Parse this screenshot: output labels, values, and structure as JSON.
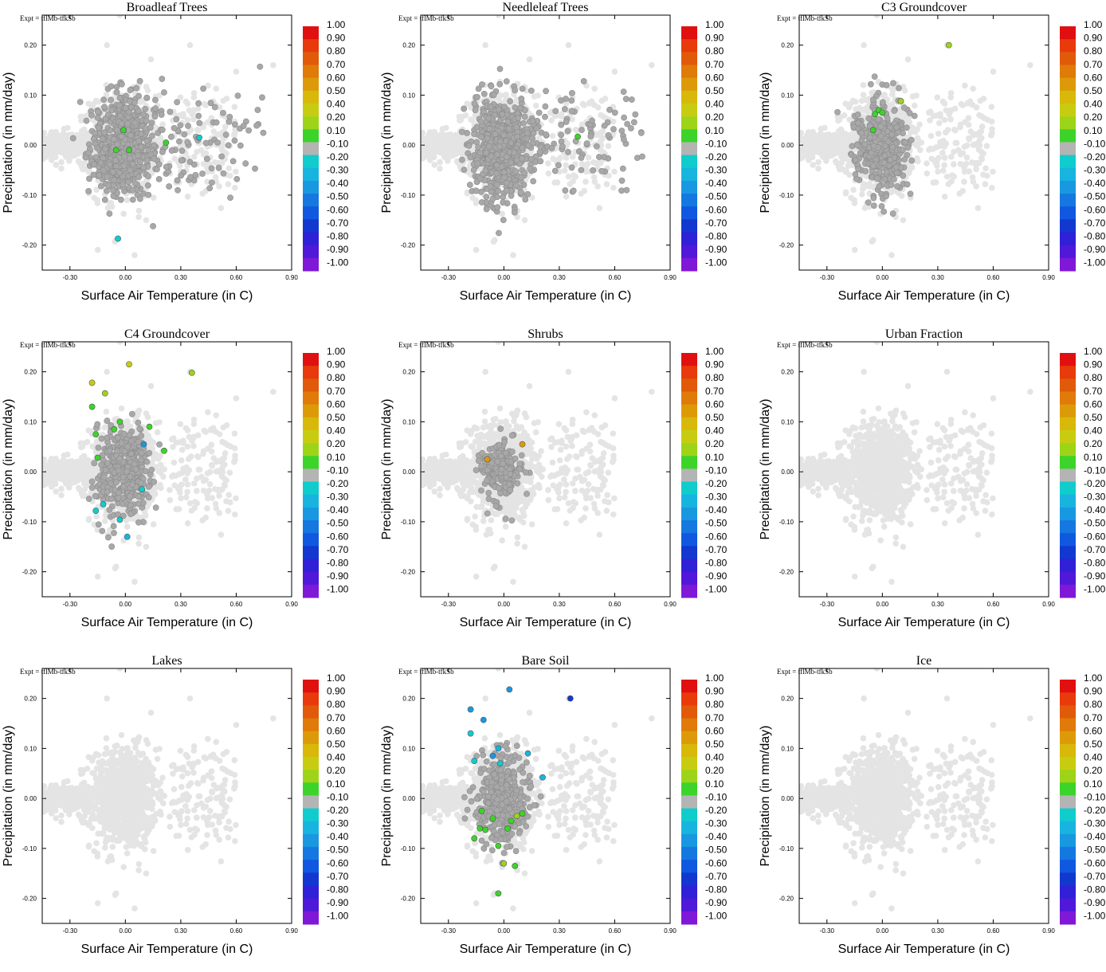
{
  "figure": {
    "expt_label": "Expt = tflMb-tfkSb",
    "xlabel": "Surface Air Temperature (in C)",
    "ylabel": "Precipitation (in mm/day)",
    "xlim": [
      -0.45,
      0.9
    ],
    "ylim": [
      -0.25,
      0.26
    ],
    "x_ticks": [
      "-0.30",
      "0.00",
      "0.30",
      "0.60",
      "0.90"
    ],
    "x_tick_values": [
      -0.3,
      0.0,
      0.3,
      0.6,
      0.9
    ],
    "y_ticks": [
      "0.20",
      "0.10",
      "0.00",
      "-0.10",
      "-0.20"
    ],
    "y_tick_values": [
      0.2,
      0.1,
      0.0,
      -0.1,
      -0.2
    ],
    "colorbar": {
      "labels": [
        "1.00",
        "0.90",
        "0.80",
        "0.70",
        "0.60",
        "0.50",
        "0.40",
        "0.20",
        "0.10",
        "-0.10",
        "-0.20",
        "-0.30",
        "-0.40",
        "-0.50",
        "-0.60",
        "-0.70",
        "-0.80",
        "-0.90",
        "-1.00"
      ],
      "colors": [
        "#e01010",
        "#e83a0a",
        "#e05a0a",
        "#e07a08",
        "#dd9a08",
        "#d8b808",
        "#c8cc10",
        "#9ed418",
        "#3cd42a",
        "#b4b4b4",
        "#10cccc",
        "#18b4e0",
        "#1898e0",
        "#1478e0",
        "#1058e0",
        "#1238d0",
        "#3020d8",
        "#5018d8",
        "#8018d8"
      ]
    }
  },
  "chart_data": [
    {
      "type": "scatter",
      "title": "Broadleaf Trees",
      "background_spread": "wide",
      "dark_spread": "large",
      "highlights": [
        {
          "x": -0.01,
          "y": 0.03,
          "c": "#3cd42a"
        },
        {
          "x": -0.05,
          "y": -0.01,
          "c": "#3cd42a"
        },
        {
          "x": 0.02,
          "y": -0.01,
          "c": "#3cd42a"
        },
        {
          "x": 0.22,
          "y": 0.005,
          "c": "#3cd42a"
        },
        {
          "x": 0.4,
          "y": 0.015,
          "c": "#10cccc"
        },
        {
          "x": -0.04,
          "y": -0.187,
          "c": "#10cccc"
        }
      ]
    },
    {
      "type": "scatter",
      "title": "Needleleaf Trees",
      "background_spread": "wide",
      "dark_spread": "large",
      "highlights": [
        {
          "x": 0.4,
          "y": 0.017,
          "c": "#3cd42a"
        }
      ]
    },
    {
      "type": "scatter",
      "title": "C3 Groundcover",
      "background_spread": "wide",
      "dark_spread": "medium",
      "highlights": [
        {
          "x": 0.36,
          "y": 0.2,
          "c": "#9ed418"
        },
        {
          "x": 0.1,
          "y": 0.088,
          "c": "#9ed418"
        },
        {
          "x": -0.02,
          "y": 0.07,
          "c": "#3cd42a"
        },
        {
          "x": -0.04,
          "y": 0.062,
          "c": "#3cd42a"
        },
        {
          "x": -0.05,
          "y": 0.03,
          "c": "#3cd42a"
        },
        {
          "x": 0.0,
          "y": 0.065,
          "c": "#3cd42a"
        }
      ]
    },
    {
      "type": "scatter",
      "title": "C4 Groundcover",
      "background_spread": "wide",
      "dark_spread": "medium",
      "highlights": [
        {
          "x": 0.02,
          "y": 0.215,
          "c": "#c8cc10"
        },
        {
          "x": 0.36,
          "y": 0.198,
          "c": "#9ed418"
        },
        {
          "x": -0.18,
          "y": 0.178,
          "c": "#c8cc10"
        },
        {
          "x": -0.11,
          "y": 0.157,
          "c": "#9ed418"
        },
        {
          "x": -0.18,
          "y": 0.13,
          "c": "#3cd42a"
        },
        {
          "x": 0.13,
          "y": 0.09,
          "c": "#3cd42a"
        },
        {
          "x": -0.03,
          "y": 0.1,
          "c": "#3cd42a"
        },
        {
          "x": -0.06,
          "y": 0.085,
          "c": "#3cd42a"
        },
        {
          "x": -0.16,
          "y": 0.075,
          "c": "#3cd42a"
        },
        {
          "x": 0.21,
          "y": 0.042,
          "c": "#3cd42a"
        },
        {
          "x": -0.15,
          "y": 0.028,
          "c": "#3cd42a"
        },
        {
          "x": 0.1,
          "y": 0.055,
          "c": "#1898e0"
        },
        {
          "x": -0.12,
          "y": -0.065,
          "c": "#10cccc"
        },
        {
          "x": -0.16,
          "y": -0.078,
          "c": "#10cccc"
        },
        {
          "x": -0.03,
          "y": -0.096,
          "c": "#10cccc"
        },
        {
          "x": 0.01,
          "y": -0.13,
          "c": "#18b4e0"
        },
        {
          "x": 0.09,
          "y": -0.035,
          "c": "#10cccc"
        }
      ]
    },
    {
      "type": "scatter",
      "title": "Shrubs",
      "background_spread": "wide",
      "dark_spread": "small",
      "highlights": [
        {
          "x": 0.1,
          "y": 0.055,
          "c": "#dd9a08"
        },
        {
          "x": -0.09,
          "y": 0.025,
          "c": "#dd9a08"
        }
      ]
    },
    {
      "type": "scatter",
      "title": "Urban Fraction",
      "background_spread": "wide",
      "dark_spread": "none",
      "highlights": []
    },
    {
      "type": "scatter",
      "title": "Lakes",
      "background_spread": "wide",
      "dark_spread": "none",
      "highlights": []
    },
    {
      "type": "scatter",
      "title": "Bare Soil",
      "background_spread": "wide",
      "dark_spread": "medium",
      "highlights": [
        {
          "x": 0.36,
          "y": 0.2,
          "c": "#1238d0"
        },
        {
          "x": 0.03,
          "y": 0.218,
          "c": "#1898e0"
        },
        {
          "x": -0.18,
          "y": 0.178,
          "c": "#1898e0"
        },
        {
          "x": -0.11,
          "y": 0.157,
          "c": "#1898e0"
        },
        {
          "x": -0.18,
          "y": 0.13,
          "c": "#10cccc"
        },
        {
          "x": 0.13,
          "y": 0.09,
          "c": "#18b4e0"
        },
        {
          "x": -0.03,
          "y": 0.1,
          "c": "#18b4e0"
        },
        {
          "x": -0.06,
          "y": 0.085,
          "c": "#1898e0"
        },
        {
          "x": -0.16,
          "y": 0.075,
          "c": "#10cccc"
        },
        {
          "x": 0.21,
          "y": 0.042,
          "c": "#18b4e0"
        },
        {
          "x": -0.02,
          "y": 0.07,
          "c": "#10cccc"
        },
        {
          "x": -0.12,
          "y": -0.025,
          "c": "#3cd42a"
        },
        {
          "x": -0.06,
          "y": -0.04,
          "c": "#3cd42a"
        },
        {
          "x": 0.04,
          "y": -0.045,
          "c": "#3cd42a"
        },
        {
          "x": 0.1,
          "y": -0.03,
          "c": "#3cd42a"
        },
        {
          "x": 0.07,
          "y": -0.035,
          "c": "#9ed418"
        },
        {
          "x": -0.13,
          "y": -0.06,
          "c": "#3cd42a"
        },
        {
          "x": -0.1,
          "y": -0.063,
          "c": "#3cd42a"
        },
        {
          "x": 0.02,
          "y": -0.06,
          "c": "#3cd42a"
        },
        {
          "x": -0.16,
          "y": -0.08,
          "c": "#3cd42a"
        },
        {
          "x": -0.03,
          "y": -0.095,
          "c": "#3cd42a"
        },
        {
          "x": 0.0,
          "y": -0.13,
          "c": "#9ed418"
        },
        {
          "x": 0.06,
          "y": -0.135,
          "c": "#3cd42a"
        },
        {
          "x": -0.03,
          "y": -0.19,
          "c": "#3cd42a"
        }
      ]
    },
    {
      "type": "scatter",
      "title": "Ice",
      "background_spread": "wide",
      "dark_spread": "none",
      "highlights": []
    }
  ]
}
